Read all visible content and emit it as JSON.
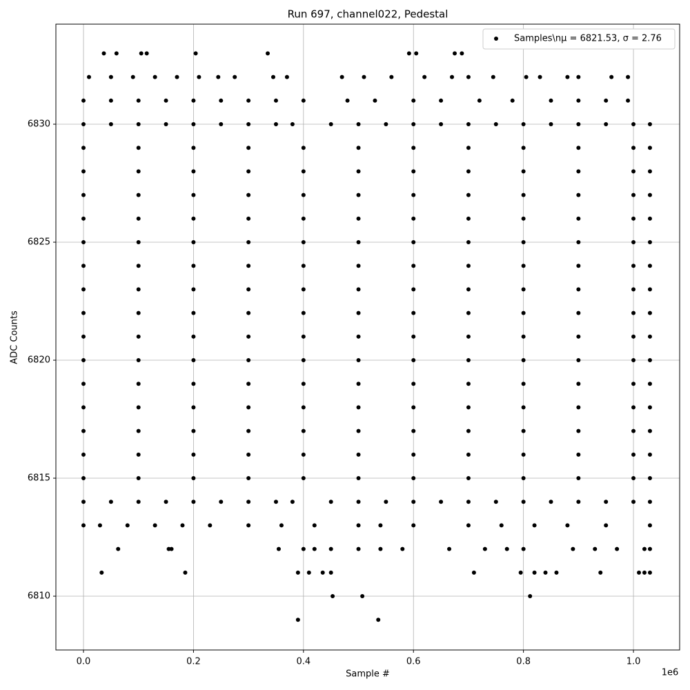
{
  "chart_data": {
    "type": "scatter",
    "title": "Run 697, channel022, Pedestal",
    "x_label": "Sample #",
    "y_label": "ADC Counts",
    "x_offset_label": "1e6",
    "xlim": [
      -0.0502,
      1.084
    ],
    "ylim": [
      6807.72,
      6834.24
    ],
    "xticks": [
      {
        "value": 0,
        "label": "0.0"
      },
      {
        "value": 0.2,
        "label": "0.2"
      },
      {
        "value": 0.4,
        "label": "0.4"
      },
      {
        "value": 0.6,
        "label": "0.6"
      },
      {
        "value": 0.8,
        "label": "0.8"
      },
      {
        "value": 1.0,
        "label": "1.0"
      }
    ],
    "yticks": [
      6810,
      6815,
      6820,
      6825,
      6830
    ],
    "grid": true,
    "legend": "upper right",
    "series": [
      {
        "name": "Samples\\nμ = 6821.53, σ = 2.76",
        "color": "#000000",
        "x": [
          0.037,
          0.06,
          0.105,
          0.115,
          0.204,
          0.335,
          0.592,
          0.605,
          0.675,
          0.688,
          0.01,
          0.05,
          0.09,
          0.13,
          0.17,
          0.21,
          0.245,
          0.275,
          0.345,
          0.37,
          0.47,
          0.51,
          0.56,
          0.62,
          0.67,
          0.7,
          0.745,
          0.805,
          0.83,
          0.88,
          0.9,
          0.96,
          0.99,
          0,
          0.05,
          0.1,
          0.15,
          0.2,
          0.25,
          0.3,
          0.35,
          0.4,
          0.48,
          0.53,
          0.6,
          0.65,
          0.72,
          0.78,
          0.85,
          0.9,
          0.95,
          0.99,
          0,
          0.05,
          0.1,
          0.15,
          0.2,
          0.25,
          0.3,
          0.35,
          0.38,
          0.45,
          0.5,
          0.55,
          0.6,
          0.65,
          0.7,
          0.75,
          0.8,
          0.85,
          0.9,
          0.95,
          1.0,
          1.03,
          0,
          0.1,
          0.2,
          0.3,
          0.4,
          0.5,
          0.6,
          0.7,
          0.8,
          0.9,
          1.0,
          1.03,
          0,
          0.1,
          0.2,
          0.3,
          0.4,
          0.5,
          0.6,
          0.7,
          0.8,
          0.9,
          1.0,
          1.03,
          0,
          0.1,
          0.2,
          0.3,
          0.4,
          0.5,
          0.6,
          0.7,
          0.8,
          0.9,
          1.0,
          1.03,
          0,
          0.1,
          0.2,
          0.3,
          0.4,
          0.5,
          0.6,
          0.7,
          0.8,
          0.9,
          1.0,
          1.03,
          0,
          0.1,
          0.2,
          0.3,
          0.4,
          0.5,
          0.6,
          0.7,
          0.8,
          0.9,
          1.0,
          1.03,
          0,
          0.1,
          0.2,
          0.3,
          0.4,
          0.5,
          0.6,
          0.7,
          0.8,
          0.9,
          1.0,
          1.03,
          0,
          0.1,
          0.2,
          0.3,
          0.4,
          0.5,
          0.6,
          0.7,
          0.8,
          0.9,
          1.0,
          1.03,
          0,
          0.1,
          0.2,
          0.3,
          0.4,
          0.5,
          0.6,
          0.7,
          0.8,
          0.9,
          1.0,
          1.03,
          0,
          0.1,
          0.2,
          0.3,
          0.4,
          0.5,
          0.6,
          0.7,
          0.8,
          0.9,
          1.0,
          1.03,
          0,
          0.1,
          0.2,
          0.3,
          0.4,
          0.5,
          0.6,
          0.7,
          0.8,
          0.9,
          1.0,
          1.03,
          0,
          0.1,
          0.2,
          0.3,
          0.4,
          0.5,
          0.6,
          0.7,
          0.8,
          0.9,
          1.0,
          1.03,
          0,
          0.1,
          0.2,
          0.3,
          0.4,
          0.5,
          0.6,
          0.7,
          0.8,
          0.9,
          1.0,
          1.03,
          0,
          0.1,
          0.2,
          0.3,
          0.4,
          0.5,
          0.6,
          0.7,
          0.8,
          0.9,
          1.0,
          1.03,
          0,
          0.1,
          0.2,
          0.3,
          0.4,
          0.5,
          0.6,
          0.7,
          0.8,
          0.9,
          1.0,
          1.03,
          0,
          0.1,
          0.2,
          0.3,
          0.4,
          0.5,
          0.6,
          0.7,
          0.8,
          0.9,
          1.0,
          1.03,
          0,
          0.05,
          0.1,
          0.15,
          0.2,
          0.25,
          0.3,
          0.35,
          0.38,
          0.45,
          0.5,
          0.55,
          0.6,
          0.65,
          0.7,
          0.75,
          0.8,
          0.85,
          0.9,
          0.95,
          1.0,
          1.03,
          0,
          0.03,
          0.08,
          0.13,
          0.18,
          0.23,
          0.3,
          0.36,
          0.42,
          0.5,
          0.54,
          0.6,
          0.7,
          0.76,
          0.82,
          0.88,
          0.95,
          1.03,
          0.063,
          0.155,
          0.16,
          0.355,
          0.4,
          0.42,
          0.45,
          0.5,
          0.54,
          0.58,
          0.665,
          0.73,
          0.77,
          0.8,
          0.89,
          0.93,
          0.97,
          1.02,
          1.03,
          0.033,
          0.185,
          0.39,
          0.41,
          0.435,
          0.45,
          0.71,
          0.795,
          0.82,
          0.84,
          0.86,
          0.94,
          1.01,
          1.02,
          1.03,
          0.453,
          0.507,
          0.812,
          0.39,
          0.536
        ],
        "values": [
          6833,
          6833,
          6833,
          6833,
          6833,
          6833,
          6833,
          6833,
          6833,
          6833,
          6832,
          6832,
          6832,
          6832,
          6832,
          6832,
          6832,
          6832,
          6832,
          6832,
          6832,
          6832,
          6832,
          6832,
          6832,
          6832,
          6832,
          6832,
          6832,
          6832,
          6832,
          6832,
          6832,
          6831,
          6831,
          6831,
          6831,
          6831,
          6831,
          6831,
          6831,
          6831,
          6831,
          6831,
          6831,
          6831,
          6831,
          6831,
          6831,
          6831,
          6831,
          6831,
          6830,
          6830,
          6830,
          6830,
          6830,
          6830,
          6830,
          6830,
          6830,
          6830,
          6830,
          6830,
          6830,
          6830,
          6830,
          6830,
          6830,
          6830,
          6830,
          6830,
          6830,
          6830,
          6829,
          6829,
          6829,
          6829,
          6829,
          6829,
          6829,
          6829,
          6829,
          6829,
          6829,
          6829,
          6828,
          6828,
          6828,
          6828,
          6828,
          6828,
          6828,
          6828,
          6828,
          6828,
          6828,
          6828,
          6827,
          6827,
          6827,
          6827,
          6827,
          6827,
          6827,
          6827,
          6827,
          6827,
          6827,
          6827,
          6826,
          6826,
          6826,
          6826,
          6826,
          6826,
          6826,
          6826,
          6826,
          6826,
          6826,
          6826,
          6825,
          6825,
          6825,
          6825,
          6825,
          6825,
          6825,
          6825,
          6825,
          6825,
          6825,
          6825,
          6824,
          6824,
          6824,
          6824,
          6824,
          6824,
          6824,
          6824,
          6824,
          6824,
          6824,
          6824,
          6823,
          6823,
          6823,
          6823,
          6823,
          6823,
          6823,
          6823,
          6823,
          6823,
          6823,
          6823,
          6822,
          6822,
          6822,
          6822,
          6822,
          6822,
          6822,
          6822,
          6822,
          6822,
          6822,
          6822,
          6821,
          6821,
          6821,
          6821,
          6821,
          6821,
          6821,
          6821,
          6821,
          6821,
          6821,
          6821,
          6820,
          6820,
          6820,
          6820,
          6820,
          6820,
          6820,
          6820,
          6820,
          6820,
          6820,
          6820,
          6819,
          6819,
          6819,
          6819,
          6819,
          6819,
          6819,
          6819,
          6819,
          6819,
          6819,
          6819,
          6818,
          6818,
          6818,
          6818,
          6818,
          6818,
          6818,
          6818,
          6818,
          6818,
          6818,
          6818,
          6817,
          6817,
          6817,
          6817,
          6817,
          6817,
          6817,
          6817,
          6817,
          6817,
          6817,
          6817,
          6816,
          6816,
          6816,
          6816,
          6816,
          6816,
          6816,
          6816,
          6816,
          6816,
          6816,
          6816,
          6815,
          6815,
          6815,
          6815,
          6815,
          6815,
          6815,
          6815,
          6815,
          6815,
          6815,
          6815,
          6814,
          6814,
          6814,
          6814,
          6814,
          6814,
          6814,
          6814,
          6814,
          6814,
          6814,
          6814,
          6814,
          6814,
          6814,
          6814,
          6814,
          6814,
          6814,
          6814,
          6814,
          6814,
          6813,
          6813,
          6813,
          6813,
          6813,
          6813,
          6813,
          6813,
          6813,
          6813,
          6813,
          6813,
          6813,
          6813,
          6813,
          6813,
          6813,
          6813,
          6812,
          6812,
          6812,
          6812,
          6812,
          6812,
          6812,
          6812,
          6812,
          6812,
          6812,
          6812,
          6812,
          6812,
          6812,
          6812,
          6812,
          6812,
          6812,
          6811,
          6811,
          6811,
          6811,
          6811,
          6811,
          6811,
          6811,
          6811,
          6811,
          6811,
          6811,
          6811,
          6811,
          6811,
          6810,
          6810,
          6810,
          6809,
          6809
        ]
      }
    ]
  }
}
